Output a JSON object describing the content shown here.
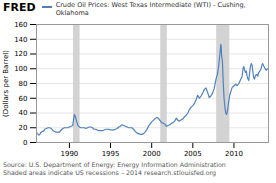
{
  "chart_data": {
    "type": "line",
    "title": "Crude Oil Prices: West Texas Intermediate (WTI) - Cushing,\nOklahoma",
    "ylabel": "(Dollars per Barrel)",
    "annotations": [
      "FRED",
      "Source: U.S. Department of Energy: Energy Information Administration",
      "Shaded areas indicate US recessions – 2014 research.stlouisfed.org"
    ],
    "color": "#4f81bd",
    "xlim": [
      1986.0,
      2014.2
    ],
    "xticks": [
      1990,
      1995,
      2000,
      2005,
      2010
    ],
    "ylim": [
      0,
      160
    ],
    "yticks": [
      0,
      20,
      40,
      60,
      80,
      100,
      120,
      140,
      160
    ],
    "grid": "y",
    "recession_bands": [
      [
        1990.5,
        1991.3
      ],
      [
        2001.1,
        2001.9
      ],
      [
        2007.9,
        2009.5
      ]
    ],
    "x": [
      1986.0,
      1986.1,
      1986.2,
      1986.3,
      1986.4,
      1986.5,
      1986.6,
      1986.7,
      1986.8,
      1986.9,
      1987.0,
      1987.2,
      1987.4,
      1987.6,
      1987.8,
      1988.0,
      1988.2,
      1988.4,
      1988.6,
      1988.8,
      1989.0,
      1989.2,
      1989.4,
      1989.6,
      1989.8,
      1990.0,
      1990.2,
      1990.4,
      1990.5,
      1990.6,
      1990.7,
      1990.8,
      1990.9,
      1991.0,
      1991.2,
      1991.4,
      1991.6,
      1991.8,
      1992.0,
      1992.2,
      1992.4,
      1992.6,
      1992.8,
      1993.0,
      1993.2,
      1993.4,
      1993.6,
      1993.8,
      1994.0,
      1994.2,
      1994.4,
      1994.6,
      1994.8,
      1995.0,
      1995.2,
      1995.4,
      1995.6,
      1995.8,
      1996.0,
      1996.2,
      1996.4,
      1996.6,
      1996.8,
      1997.0,
      1997.2,
      1997.4,
      1997.6,
      1997.8,
      1998.0,
      1998.2,
      1998.4,
      1998.6,
      1998.8,
      1999.0,
      1999.2,
      1999.4,
      1999.6,
      1999.8,
      2000.0,
      2000.2,
      2000.4,
      2000.6,
      2000.8,
      2001.0,
      2001.2,
      2001.4,
      2001.6,
      2001.8,
      2002.0,
      2002.2,
      2002.4,
      2002.6,
      2002.8,
      2003.0,
      2003.2,
      2003.4,
      2003.6,
      2003.8,
      2004.0,
      2004.2,
      2004.4,
      2004.6,
      2004.8,
      2005.0,
      2005.2,
      2005.4,
      2005.6,
      2005.8,
      2006.0,
      2006.2,
      2006.4,
      2006.6,
      2006.8,
      2007.0,
      2007.2,
      2007.4,
      2007.6,
      2007.8,
      2008.0,
      2008.1,
      2008.2,
      2008.3,
      2008.4,
      2008.45,
      2008.5,
      2008.6,
      2008.65,
      2008.7,
      2008.8,
      2008.9,
      2009.0,
      2009.1,
      2009.2,
      2009.3,
      2009.4,
      2009.5,
      2009.6,
      2009.7,
      2009.8,
      2009.9,
      2010.0,
      2010.2,
      2010.4,
      2010.6,
      2010.8,
      2011.0,
      2011.1,
      2011.2,
      2011.3,
      2011.4,
      2011.5,
      2011.6,
      2011.7,
      2011.8,
      2011.9,
      2012.0,
      2012.1,
      2012.2,
      2012.3,
      2012.4,
      2012.5,
      2012.6,
      2012.7,
      2012.8,
      2012.9,
      2013.0,
      2013.1,
      2013.2,
      2013.3,
      2013.4,
      2013.5,
      2013.6,
      2013.7,
      2013.8,
      2013.9,
      2014.0,
      2014.1
    ],
    "values": [
      14,
      12,
      11,
      10,
      11,
      13,
      14,
      15,
      15,
      16,
      18,
      19,
      20,
      20,
      19,
      16,
      15,
      14,
      14,
      14,
      17,
      19,
      20,
      20,
      20,
      21,
      22,
      23,
      30,
      38,
      36,
      32,
      28,
      24,
      21,
      20,
      20,
      20,
      19,
      20,
      21,
      21,
      20,
      18,
      18,
      17,
      16,
      16,
      16,
      17,
      18,
      18,
      18,
      17,
      17,
      17,
      18,
      19,
      21,
      22,
      24,
      23,
      22,
      21,
      20,
      20,
      20,
      18,
      15,
      13,
      12,
      11,
      11,
      12,
      14,
      17,
      22,
      25,
      28,
      30,
      32,
      34,
      33,
      30,
      27,
      26,
      25,
      22,
      23,
      24,
      26,
      27,
      29,
      33,
      30,
      29,
      31,
      32,
      35,
      37,
      40,
      45,
      48,
      50,
      53,
      58,
      64,
      60,
      63,
      67,
      72,
      74,
      68,
      61,
      63,
      67,
      73,
      85,
      93,
      100,
      110,
      120,
      133,
      130,
      118,
      110,
      95,
      80,
      60,
      48,
      40,
      38,
      42,
      50,
      58,
      65,
      68,
      72,
      75,
      76,
      77,
      79,
      77,
      80,
      85,
      90,
      100,
      103,
      98,
      95,
      97,
      90,
      86,
      84,
      94,
      103,
      107,
      105,
      96,
      88,
      86,
      90,
      92,
      92,
      90,
      95,
      96,
      98,
      100,
      105,
      107,
      104,
      102,
      100,
      98,
      99,
      100
    ]
  }
}
